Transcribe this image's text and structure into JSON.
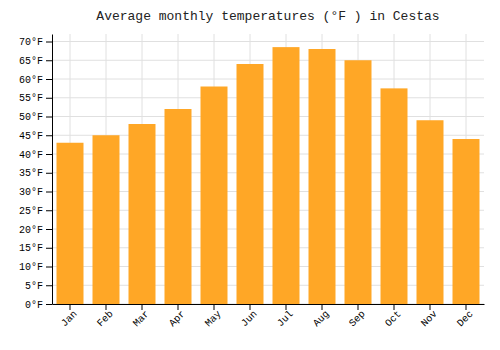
{
  "chart_data": {
    "type": "bar",
    "title": "Average monthly temperatures (°F ) in Cestas",
    "categories": [
      "Jan",
      "Feb",
      "Mar",
      "Apr",
      "May",
      "Jun",
      "Jul",
      "Aug",
      "Sep",
      "Oct",
      "Nov",
      "Dec"
    ],
    "values": [
      43,
      45,
      48,
      52,
      58,
      64,
      68.5,
      68,
      65,
      57.5,
      49,
      44
    ],
    "color": "#FFA726",
    "ylim": [
      0,
      72
    ],
    "yticks": [
      {
        "value": 0,
        "label": "0°F"
      },
      {
        "value": 5,
        "label": "5°F"
      },
      {
        "value": 10,
        "label": "10°F"
      },
      {
        "value": 15,
        "label": "15°F"
      },
      {
        "value": 20,
        "label": "20°F"
      },
      {
        "value": 25,
        "label": "25°F"
      },
      {
        "value": 30,
        "label": "30°F"
      },
      {
        "value": 35,
        "label": "35°F"
      },
      {
        "value": 40,
        "label": "40°F"
      },
      {
        "value": 45,
        "label": "45°F"
      },
      {
        "value": 50,
        "label": "50°F"
      },
      {
        "value": 55,
        "label": "55°F"
      },
      {
        "value": 60,
        "label": "60°F"
      },
      {
        "value": 65,
        "label": "65°F"
      },
      {
        "value": 70,
        "label": "70°F"
      }
    ],
    "grid": true
  }
}
